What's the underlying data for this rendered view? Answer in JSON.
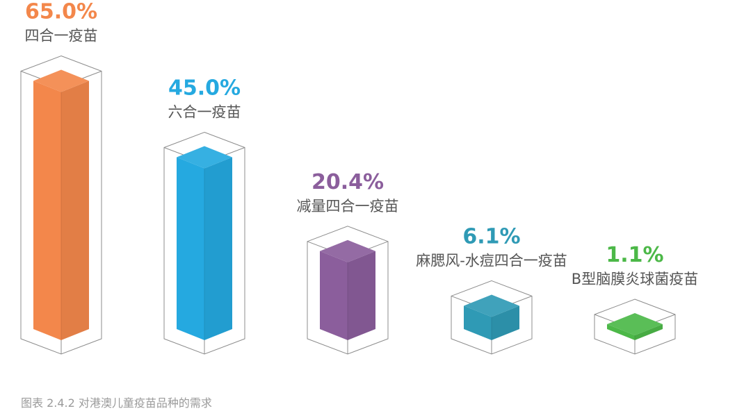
{
  "chart_data": {
    "type": "bar",
    "categories": [
      "四合一疫苗",
      "六合一疫苗",
      "减量四合一疫苗",
      "麻腮风-水痘四合一疫苗",
      "B型脑膜炎球菌疫苗"
    ],
    "values": [
      65.0,
      45.0,
      20.4,
      6.1,
      1.1
    ],
    "value_labels": [
      "65.0%",
      "45.0%",
      "20.4%",
      "6.1%",
      "1.1%"
    ],
    "colors": [
      "#F3874B",
      "#25A9E0",
      "#8B5E9C",
      "#2F9AB5",
      "#4CB848"
    ],
    "title": "",
    "xlabel": "",
    "ylabel": "",
    "ylim": [
      0,
      100
    ],
    "grid": false,
    "legend": "none"
  },
  "caption": "图表 2.4.2 对港澳儿童疫苗品种的需求"
}
